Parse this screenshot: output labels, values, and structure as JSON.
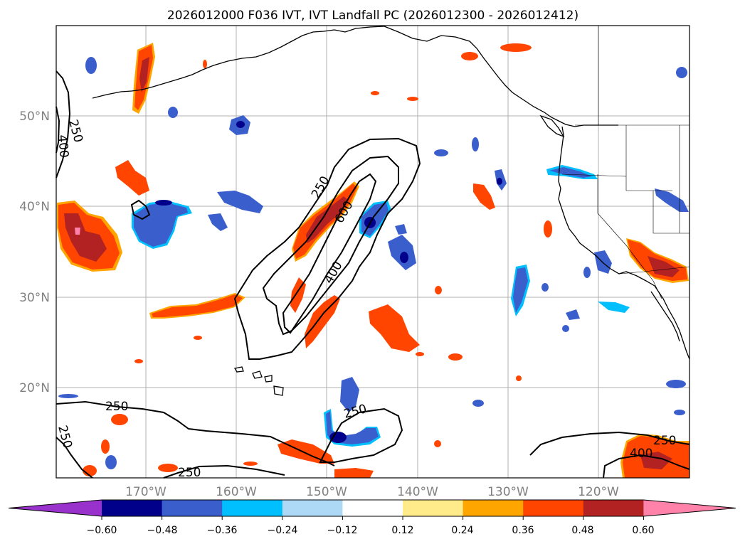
{
  "title": "2026012000 F036 IVT, IVT Landfall PC (2026012300 - 2026012412)",
  "lat_labels": [
    "50°N",
    "40°N",
    "30°N",
    "20°N"
  ],
  "lon_labels": [
    "170°W",
    "160°W",
    "150°W",
    "140°W",
    "130°W",
    "120°W"
  ],
  "contour_labels": [
    "250",
    "400",
    "250",
    "600",
    "400",
    "250",
    "250",
    "250",
    "250",
    "250",
    "400"
  ],
  "colorbar": {
    "ticks": [
      "−0.60",
      "−0.48",
      "−0.36",
      "−0.24",
      "−0.12",
      "0.12",
      "0.24",
      "0.36",
      "0.48",
      "0.60"
    ],
    "colors": [
      "#9932cc",
      "#00008b",
      "#3a5fcd",
      "#00bfff",
      "#add8f6",
      "#ffffff",
      "#ffeb8a",
      "#ffa500",
      "#ff4500",
      "#b22222",
      "#ff82ab"
    ]
  },
  "colors": {
    "grid": "#b0b0b0",
    "axis_label": "#808080",
    "contour": "#000000"
  }
}
